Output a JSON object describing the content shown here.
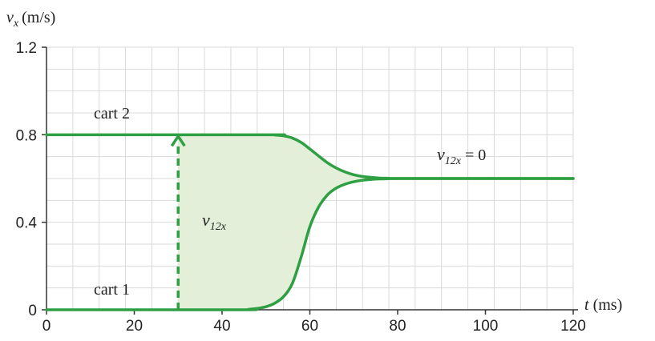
{
  "chart_data": {
    "type": "line",
    "title": "",
    "xlabel": {
      "symbol": "t",
      "unit": "(ms)"
    },
    "ylabel": {
      "symbol": "v",
      "subscript": "x",
      "unit": "(m/s)"
    },
    "xlim": [
      0,
      120
    ],
    "ylim": [
      0,
      1.2
    ],
    "x_ticks": [
      0,
      20,
      40,
      60,
      80,
      100,
      120
    ],
    "x_tick_labels": [
      "0",
      "20",
      "40",
      "60",
      "80",
      "100",
      "120"
    ],
    "y_ticks": [
      0,
      0.4,
      0.8,
      1.2
    ],
    "y_tick_labels": [
      "0",
      "0.4",
      "0.8",
      "1.2"
    ],
    "grid": true,
    "grid_x_step": 6,
    "grid_y_step": 0.1,
    "series": [
      {
        "name": "cart 2",
        "color": "#2ea043",
        "x": [
          0,
          50,
          52,
          54,
          56,
          58,
          60,
          62,
          64,
          66,
          68,
          70,
          72,
          74,
          76,
          78,
          80,
          120
        ],
        "y": [
          0.8,
          0.8,
          0.799,
          0.795,
          0.785,
          0.765,
          0.735,
          0.703,
          0.672,
          0.648,
          0.63,
          0.617,
          0.609,
          0.605,
          0.602,
          0.601,
          0.6,
          0.6
        ]
      },
      {
        "name": "cart 1",
        "color": "#2ea043",
        "x": [
          0,
          44,
          46,
          48,
          50,
          52,
          54,
          56,
          58,
          60,
          62,
          64,
          66,
          68,
          70,
          72,
          74,
          76,
          78,
          80,
          120
        ],
        "y": [
          0,
          0.0,
          0.002,
          0.006,
          0.014,
          0.03,
          0.06,
          0.12,
          0.24,
          0.38,
          0.47,
          0.525,
          0.556,
          0.574,
          0.585,
          0.592,
          0.596,
          0.598,
          0.599,
          0.6,
          0.6
        ]
      }
    ],
    "annotations": {
      "cart2_label": "cart 2",
      "cart1_label": "cart 1",
      "arrow": {
        "x": 30,
        "y_from": 0,
        "y_to": 0.8
      },
      "arrow_label": {
        "symbol": "v",
        "subscript": "12x"
      },
      "final_label": {
        "symbol": "v",
        "subscript": "12x",
        "rest": " = 0"
      }
    },
    "colors": {
      "line": "#2ea043",
      "fill": "#e3efd9",
      "grid": "#d9d9d9",
      "axis": "#333333"
    }
  }
}
